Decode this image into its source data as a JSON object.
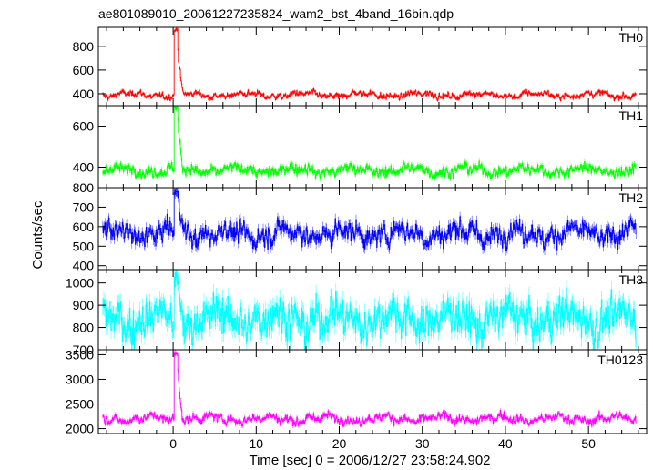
{
  "chart_data": {
    "type": "line",
    "title": "ae801089010_20061227235824_wam2_bst_4band_16bin.qdp",
    "xlabel": "Time [sec] 0 = 2006/12/27 23:58:24.902",
    "ylabel": "Counts/sec",
    "xlim": [
      -9,
      57
    ],
    "x_ticks": [
      0,
      10,
      20,
      30,
      40,
      50
    ],
    "grid": false,
    "panels": [
      {
        "name": "TH0",
        "color": "#ff0000",
        "ylim": [
          300,
          960
        ],
        "y_ticks": [
          400,
          600,
          800
        ],
        "baseline": 390,
        "noise": 22,
        "bump": 10,
        "spike": 950,
        "tail": 180,
        "flare_at": 0.2
      },
      {
        "name": "TH1",
        "color": "#00ff00",
        "ylim": [
          300,
          700
        ],
        "y_ticks": [
          400,
          600
        ],
        "baseline": 385,
        "noise": 22,
        "bump": 8,
        "spike": 700,
        "tail": 120,
        "flare_at": 0.2
      },
      {
        "name": "TH2",
        "color": "#0000ff",
        "ylim": [
          380,
          800
        ],
        "y_ticks": [
          400,
          500,
          600,
          700,
          800
        ],
        "baseline": 565,
        "noise": 45,
        "bump": 15,
        "spike": 800,
        "tail": 150,
        "flare_at": 0.2
      },
      {
        "name": "TH3",
        "color": "#00ffff",
        "ylim": [
          700,
          1060
        ],
        "y_ticks": [
          700,
          800,
          900,
          1000
        ],
        "baseline": 840,
        "noise": 70,
        "bump": 20,
        "spike": 1050,
        "tail": 90,
        "flare_at": 0.2
      },
      {
        "name": "TH0123",
        "color": "#ff00ff",
        "ylim": [
          1900,
          3600
        ],
        "y_ticks": [
          2000,
          2500,
          3000,
          3500
        ],
        "baseline": 2200,
        "noise": 75,
        "bump": 30,
        "spike": 3550,
        "tail": 600,
        "flare_at": 0.2
      }
    ]
  }
}
